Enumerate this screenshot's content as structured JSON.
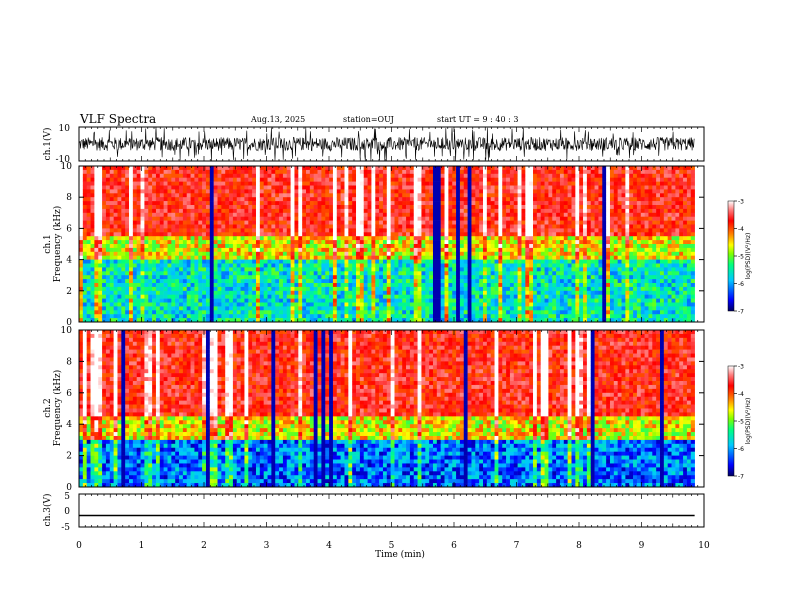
{
  "header": {
    "title": "VLF Spectra",
    "date": "Aug.13, 2025",
    "station": "station=OUJ",
    "start": "start UT = 9 : 40 : 3"
  },
  "colors": {
    "scale": [
      "#000080",
      "#0000ff",
      "#00c8ff",
      "#00ff80",
      "#80ff00",
      "#ffff00",
      "#ff8000",
      "#ff0000",
      "#ffffff"
    ],
    "axis": "#000000"
  },
  "chart_data": [
    {
      "type": "line",
      "name": "ch1-waveform",
      "ylabel": "ch.1(V)",
      "ylim": [
        -10,
        10
      ],
      "yticks": [
        "10",
        "-10"
      ],
      "description_values": "dense noisy waveform",
      "xlim": [
        0,
        10
      ]
    },
    {
      "type": "heatmap",
      "name": "ch1-spectrogram",
      "ylabel_line1": "ch.1",
      "ylabel_line2": "Frequency (kHz)",
      "ylim": [
        0,
        10
      ],
      "yticks": [
        "0",
        "2",
        "4",
        "6",
        "8",
        "10"
      ],
      "xlim": [
        0,
        9.85
      ],
      "noise_floor_khz": 4.5,
      "colorbar": {
        "label": "log(PSD)(V²/Hz)",
        "ticks": [
          "-3",
          "-4",
          "-5",
          "-6",
          "-7"
        ],
        "range": [
          -7,
          -3
        ]
      }
    },
    {
      "type": "heatmap",
      "name": "ch2-spectrogram",
      "ylabel_line1": "ch.2",
      "ylabel_line2": "Frequency (kHz)",
      "ylim": [
        0,
        10
      ],
      "yticks": [
        "0",
        "2",
        "4",
        "6",
        "8",
        "10"
      ],
      "xlim": [
        0,
        9.85
      ],
      "noise_floor_khz": 3.5,
      "colorbar": {
        "label": "log(PSD)(V²/Hz)",
        "ticks": [
          "-3",
          "-4",
          "-5",
          "-6",
          "-7"
        ],
        "range": [
          -7,
          -3
        ]
      }
    },
    {
      "type": "line",
      "name": "ch3-waveform",
      "ylabel": "ch.3(V)",
      "ylim": [
        -5,
        5
      ],
      "yticks": [
        "5",
        "0",
        "-5"
      ],
      "x": [
        0,
        9.85
      ],
      "y": [
        -1.5,
        -1.5
      ],
      "xlim": [
        0,
        10
      ]
    }
  ],
  "xaxis": {
    "label": "Time (min)",
    "ticks": [
      "0",
      "1",
      "2",
      "3",
      "4",
      "5",
      "6",
      "7",
      "8",
      "9",
      "10"
    ],
    "range": [
      0,
      10
    ]
  }
}
